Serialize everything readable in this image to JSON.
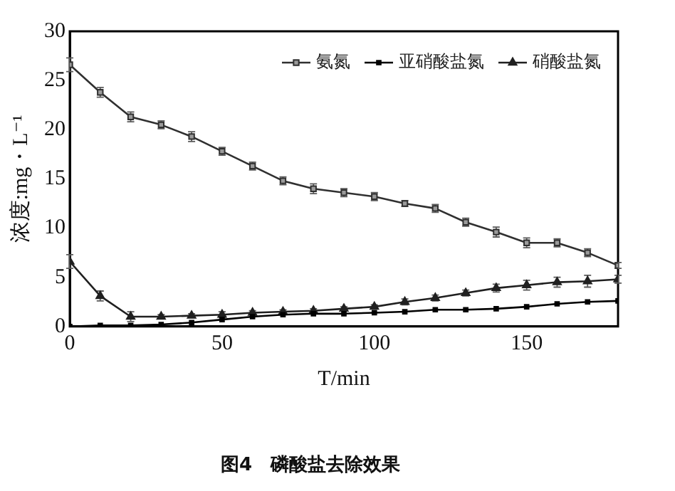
{
  "chart_data": {
    "type": "line",
    "title": "图4　磷酸盐去除效果",
    "xlabel": "T/min",
    "ylabel": "浓度:mg・L⁻¹",
    "x": [
      0,
      10,
      20,
      30,
      40,
      50,
      60,
      70,
      80,
      90,
      100,
      110,
      120,
      130,
      140,
      150,
      160,
      170,
      180
    ],
    "xlim": [
      0,
      180
    ],
    "xticks": [
      0,
      50,
      100,
      150
    ],
    "ylim": [
      0,
      30
    ],
    "yticks": [
      0,
      5,
      10,
      15,
      20,
      25,
      30
    ],
    "grid": false,
    "legend": "top right",
    "line_style": "solid",
    "series": [
      {
        "name": "氨氮",
        "color": "#303030",
        "marker": "square",
        "values": [
          26.6,
          23.8,
          21.3,
          20.5,
          19.3,
          17.8,
          16.3,
          14.8,
          14.0,
          13.6,
          13.2,
          12.5,
          12.0,
          10.6,
          9.6,
          8.5,
          8.5,
          7.5,
          6.2
        ],
        "errors": [
          0.7,
          0.5,
          0.5,
          0.4,
          0.5,
          0.4,
          0.4,
          0.4,
          0.5,
          0.4,
          0.4,
          0.3,
          0.4,
          0.4,
          0.5,
          0.5,
          0.4,
          0.4,
          0.3
        ]
      },
      {
        "name": "亚硝酸盐氮",
        "color": "#000000",
        "marker": "square",
        "values": [
          0,
          0.1,
          0.1,
          0.2,
          0.4,
          0.7,
          1.0,
          1.2,
          1.3,
          1.3,
          1.4,
          1.5,
          1.7,
          1.7,
          1.8,
          2.0,
          2.3,
          2.5,
          2.6
        ]
      },
      {
        "name": "硝酸盐氮",
        "color": "#202020",
        "marker": "triangle",
        "values": [
          6.6,
          3.1,
          1.0,
          1.0,
          1.1,
          1.2,
          1.4,
          1.5,
          1.6,
          1.8,
          2.0,
          2.5,
          2.9,
          3.4,
          3.9,
          4.2,
          4.5,
          4.6,
          4.8
        ],
        "errors": [
          0.7,
          0.5,
          0.5,
          0.2,
          0.2,
          0.3,
          0.2,
          0.2,
          0.2,
          0.2,
          0.2,
          0.3,
          0.3,
          0.3,
          0.4,
          0.5,
          0.5,
          0.6,
          0.4
        ]
      }
    ]
  }
}
